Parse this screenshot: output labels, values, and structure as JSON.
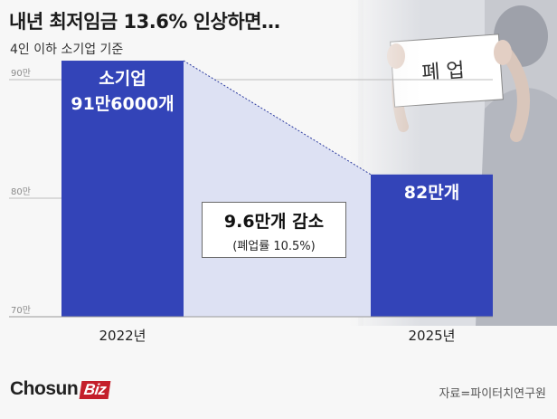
{
  "title": "내년 최저임금 13.6% 인상하면…",
  "subtitle": "4인 이하 소기업 기준",
  "illustration_sign_text": "폐 업",
  "callout": {
    "main": "9.6만개 감소",
    "sub": "(폐업률 10.5%)"
  },
  "logo": {
    "text": "Chosun",
    "badge": "Biz"
  },
  "source": "자료=파이터치연구원",
  "colors": {
    "bar": "#3344b8",
    "band": "#dde1f3",
    "accent": "#c41f2b"
  },
  "chart_data": {
    "type": "bar",
    "categories": [
      "2022년",
      "2025년"
    ],
    "values": [
      91.6,
      82
    ],
    "data_labels": [
      [
        "소기업",
        "91만6000개"
      ],
      [
        "82만개"
      ]
    ],
    "y_ticks": [
      {
        "value": 90,
        "label": "90만"
      },
      {
        "value": 80,
        "label": "80만"
      },
      {
        "value": 70,
        "label": "70만"
      }
    ],
    "ylim": [
      70,
      95
    ],
    "grid": true,
    "unit": "만"
  }
}
